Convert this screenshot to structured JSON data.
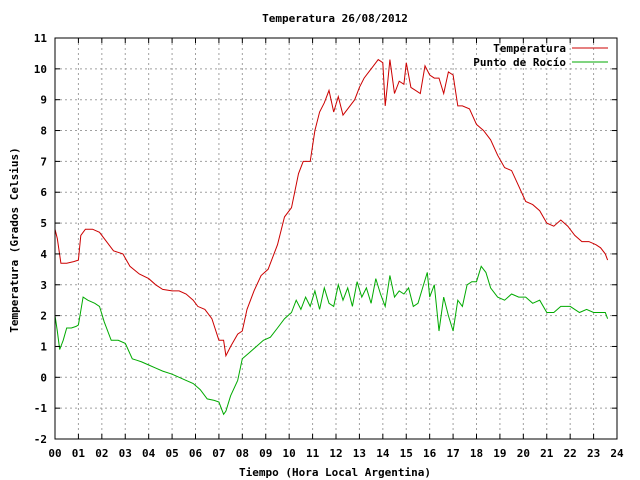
{
  "chart_data": {
    "type": "line",
    "title": "Temperatura 26/08/2012",
    "xlabel": "Tiempo (Hora Local Argentina)",
    "ylabel": "Temperatura (Grados Celsius)",
    "xlim": [
      0,
      24
    ],
    "ylim": [
      -2,
      11
    ],
    "grid": true,
    "legend_position": "top-right",
    "x_tick_labels": [
      "00",
      "01",
      "02",
      "03",
      "04",
      "05",
      "06",
      "07",
      "08",
      "09",
      "10",
      "11",
      "12",
      "13",
      "14",
      "15",
      "16",
      "17",
      "18",
      "19",
      "20",
      "21",
      "22",
      "23",
      "24"
    ],
    "y_tick_labels": [
      "-2",
      "-1",
      "0",
      "1",
      "2",
      "3",
      "4",
      "5",
      "6",
      "7",
      "8",
      "9",
      "10",
      "11"
    ],
    "series": [
      {
        "name": "Temperatura",
        "color": "#cc0000",
        "x": [
          0.0,
          0.1,
          0.25,
          0.5,
          0.8,
          1.0,
          1.1,
          1.3,
          1.6,
          1.9,
          2.2,
          2.5,
          2.9,
          3.2,
          3.6,
          4.0,
          4.3,
          4.6,
          5.0,
          5.3,
          5.6,
          5.9,
          6.1,
          6.4,
          6.7,
          7.0,
          7.2,
          7.3,
          7.5,
          7.8,
          8.0,
          8.2,
          8.5,
          8.8,
          9.1,
          9.5,
          9.8,
          10.1,
          10.4,
          10.6,
          10.9,
          11.1,
          11.3,
          11.5,
          11.7,
          11.9,
          12.1,
          12.3,
          12.5,
          12.8,
          13.0,
          13.2,
          13.4,
          13.6,
          13.8,
          14.0,
          14.1,
          14.2,
          14.3,
          14.5,
          14.7,
          14.9,
          15.0,
          15.2,
          15.4,
          15.6,
          15.8,
          16.0,
          16.2,
          16.4,
          16.6,
          16.8,
          17.0,
          17.2,
          17.4,
          17.7,
          18.0,
          18.3,
          18.6,
          18.9,
          19.2,
          19.5,
          19.8,
          20.1,
          20.4,
          20.7,
          21.0,
          21.3,
          21.6,
          21.9,
          22.2,
          22.5,
          22.8,
          23.1,
          23.3,
          23.5,
          23.6
        ],
        "y": [
          4.8,
          4.5,
          3.7,
          3.7,
          3.75,
          3.8,
          4.6,
          4.8,
          4.8,
          4.7,
          4.4,
          4.1,
          4.0,
          3.6,
          3.35,
          3.2,
          3.0,
          2.85,
          2.8,
          2.8,
          2.7,
          2.5,
          2.3,
          2.2,
          1.9,
          1.2,
          1.2,
          0.7,
          1.0,
          1.4,
          1.5,
          2.2,
          2.8,
          3.3,
          3.5,
          4.3,
          5.2,
          5.5,
          6.6,
          7.0,
          7.0,
          8.0,
          8.6,
          8.9,
          9.3,
          8.6,
          9.1,
          8.5,
          8.7,
          9.0,
          9.4,
          9.7,
          9.9,
          10.1,
          10.3,
          10.2,
          8.8,
          9.5,
          10.3,
          9.2,
          9.6,
          9.5,
          10.2,
          9.4,
          9.3,
          9.2,
          10.1,
          9.8,
          9.7,
          9.7,
          9.2,
          9.9,
          9.8,
          8.8,
          8.8,
          8.7,
          8.2,
          8.0,
          7.7,
          7.2,
          6.8,
          6.7,
          6.2,
          5.7,
          5.6,
          5.4,
          5.0,
          4.9,
          5.1,
          4.9,
          4.6,
          4.4,
          4.4,
          4.3,
          4.2,
          4.0,
          3.8
        ]
      },
      {
        "name": "Punto de Rocío",
        "color": "#00aa00",
        "x": [
          0.0,
          0.1,
          0.2,
          0.35,
          0.5,
          0.7,
          0.9,
          1.0,
          1.2,
          1.4,
          1.7,
          1.9,
          2.1,
          2.4,
          2.7,
          3.0,
          3.3,
          3.5,
          3.7,
          4.0,
          4.3,
          4.6,
          5.0,
          5.3,
          5.6,
          5.9,
          6.2,
          6.5,
          6.8,
          7.0,
          7.2,
          7.3,
          7.5,
          7.8,
          8.0,
          8.3,
          8.6,
          8.9,
          9.2,
          9.5,
          9.8,
          10.1,
          10.3,
          10.5,
          10.7,
          10.9,
          11.1,
          11.3,
          11.5,
          11.7,
          11.9,
          12.1,
          12.3,
          12.5,
          12.7,
          12.9,
          13.1,
          13.3,
          13.5,
          13.7,
          13.9,
          14.1,
          14.3,
          14.5,
          14.7,
          14.9,
          15.1,
          15.3,
          15.5,
          15.7,
          15.9,
          16.0,
          16.2,
          16.4,
          16.6,
          16.8,
          17.0,
          17.2,
          17.4,
          17.6,
          17.8,
          18.0,
          18.2,
          18.4,
          18.6,
          18.9,
          19.2,
          19.5,
          19.8,
          20.1,
          20.4,
          20.7,
          21.0,
          21.3,
          21.6,
          22.0,
          22.4,
          22.7,
          23.0,
          23.3,
          23.5,
          23.6
        ],
        "y": [
          2.0,
          1.5,
          0.9,
          1.2,
          1.6,
          1.6,
          1.65,
          1.7,
          2.6,
          2.5,
          2.4,
          2.3,
          1.8,
          1.2,
          1.2,
          1.1,
          0.6,
          0.55,
          0.5,
          0.4,
          0.3,
          0.2,
          0.1,
          0.0,
          -0.1,
          -0.2,
          -0.4,
          -0.7,
          -0.75,
          -0.8,
          -1.2,
          -1.1,
          -0.6,
          -0.1,
          0.6,
          0.8,
          1.0,
          1.2,
          1.3,
          1.6,
          1.9,
          2.1,
          2.5,
          2.2,
          2.6,
          2.3,
          2.8,
          2.2,
          2.9,
          2.4,
          2.3,
          3.0,
          2.5,
          2.9,
          2.3,
          3.1,
          2.6,
          2.9,
          2.4,
          3.2,
          2.7,
          2.3,
          3.3,
          2.6,
          2.8,
          2.7,
          2.9,
          2.3,
          2.4,
          2.9,
          3.4,
          2.6,
          3.0,
          1.5,
          2.6,
          2.0,
          1.5,
          2.5,
          2.3,
          3.0,
          3.1,
          3.1,
          3.6,
          3.4,
          2.9,
          2.6,
          2.5,
          2.7,
          2.6,
          2.6,
          2.4,
          2.5,
          2.1,
          2.1,
          2.3,
          2.3,
          2.1,
          2.2,
          2.1,
          2.1,
          2.1,
          1.9
        ]
      }
    ]
  }
}
